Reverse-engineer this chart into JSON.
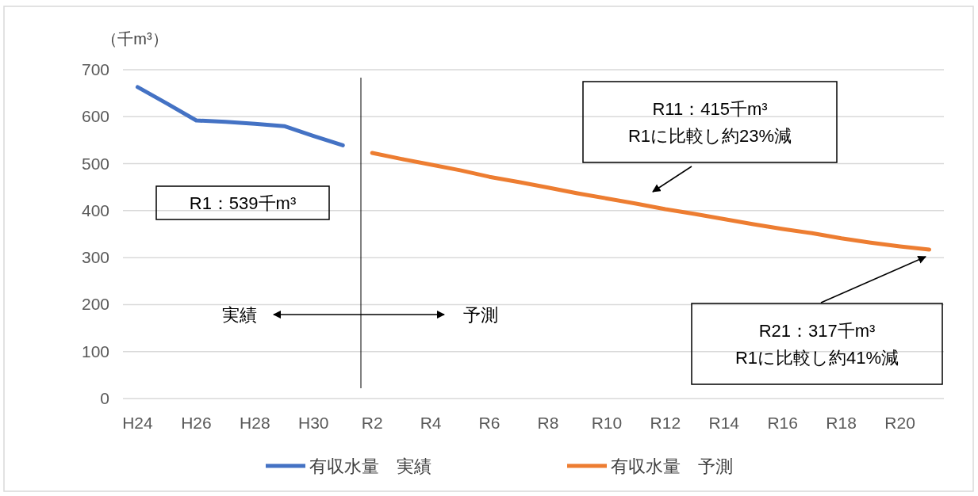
{
  "chart_data": {
    "type": "line",
    "ylabel": "（千m³）",
    "categories": [
      "H24",
      null,
      "H26",
      null,
      "H28",
      null,
      "H30",
      null,
      "R2",
      null,
      "R4",
      null,
      "R6",
      null,
      "R8",
      null,
      "R10",
      null,
      "R12",
      null,
      "R14",
      null,
      "R16",
      null,
      "R18",
      null,
      "R20",
      null
    ],
    "series": [
      {
        "name": "有収水量　実績",
        "color": "#4472c4",
        "values": [
          663,
          628,
          592,
          589,
          585,
          580,
          559,
          539,
          null,
          null,
          null,
          null,
          null,
          null,
          null,
          null,
          null,
          null,
          null,
          null,
          null,
          null,
          null,
          null,
          null,
          null,
          null,
          null
        ]
      },
      {
        "name": "有収水量　予測",
        "color": "#ed7d31",
        "values": [
          null,
          null,
          null,
          null,
          null,
          null,
          null,
          null,
          523,
          510,
          498,
          486,
          472,
          461,
          449,
          437,
          426,
          415,
          403,
          393,
          382,
          371,
          361,
          352,
          341,
          332,
          324,
          317
        ]
      }
    ],
    "ylim": [
      0,
      700
    ],
    "yticks": [
      0,
      100,
      200,
      300,
      400,
      500,
      600,
      700
    ],
    "grid": "y",
    "legend": "bottom",
    "annotations": [
      "R1：539千m³",
      "R11：415千m³\nR1に比較し約23%減",
      "R21：317千m³\nR1に比較し約41%減",
      "実績",
      "予測"
    ]
  }
}
